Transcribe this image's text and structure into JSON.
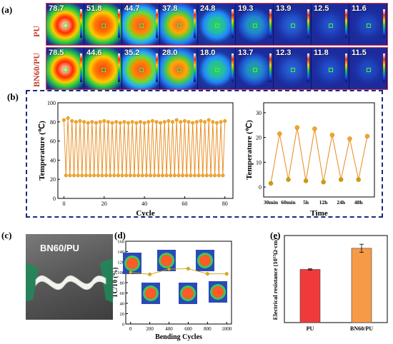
{
  "panels": {
    "a": "(a)",
    "b": "(b)",
    "c": "(c)",
    "d": "(d)",
    "e": "(e)"
  },
  "panel_a": {
    "rows": [
      {
        "label": "PU",
        "temps": [
          "78.7",
          "51.8",
          "44.7",
          "37.8",
          "24.8",
          "19.3",
          "13.9",
          "12.5",
          "11.6"
        ]
      },
      {
        "label": "BN60/PU",
        "temps": [
          "78.5",
          "44.6",
          "35.2",
          "28.0",
          "18.0",
          "13.7",
          "12.3",
          "11.8",
          "11.5"
        ]
      }
    ]
  },
  "panel_c": {
    "label": "BN60/PU"
  },
  "chart_data": [
    {
      "type": "line",
      "panel": "b-left",
      "xlabel": "Cycle",
      "ylabel": "Temperature (℃)",
      "xlim": [
        -3,
        84
      ],
      "ylim": [
        0,
        100
      ],
      "xticks": [
        0,
        20,
        40,
        60,
        80
      ],
      "yticks": [
        0,
        20,
        40,
        60,
        80,
        100
      ],
      "x": [
        0,
        1,
        2,
        3,
        4,
        5,
        6,
        7,
        8,
        9,
        10,
        11,
        12,
        13,
        14,
        15,
        16,
        17,
        18,
        19,
        20,
        21,
        22,
        23,
        24,
        25,
        26,
        27,
        28,
        29,
        30,
        31,
        32,
        33,
        34,
        35,
        36,
        37,
        38,
        39,
        40,
        41,
        42,
        43,
        44,
        45,
        46,
        47,
        48,
        49,
        50,
        51,
        52,
        53,
        54,
        55,
        56,
        57,
        58,
        59,
        60,
        61,
        62,
        63,
        64,
        65,
        66,
        67,
        68,
        69,
        70,
        71,
        72,
        73,
        74,
        75,
        76,
        77,
        78,
        79,
        80
      ],
      "y": [
        82,
        24,
        84,
        24,
        81,
        24,
        80,
        24,
        81,
        24,
        80,
        24,
        79,
        24,
        80,
        24,
        79,
        24,
        80,
        24,
        81,
        24,
        80,
        24,
        79,
        24,
        80,
        24,
        79,
        24,
        80,
        24,
        79,
        24,
        80,
        24,
        79,
        24,
        80,
        24,
        79,
        24,
        80,
        24,
        81,
        24,
        80,
        24,
        79,
        24,
        80,
        24,
        81,
        24,
        80,
        24,
        82,
        24,
        80,
        24,
        81,
        24,
        80,
        24,
        79,
        24,
        80,
        24,
        81,
        24,
        80,
        24,
        82,
        24,
        80,
        24,
        79,
        24,
        80,
        24,
        81
      ]
    },
    {
      "type": "line",
      "panel": "b-right",
      "xlabel": "Time",
      "ylabel": "Temperature (℃)",
      "categories": [
        "30min",
        "",
        "60min",
        "",
        "5h",
        "",
        "12h",
        "",
        "24h",
        "",
        "48h",
        ""
      ],
      "xtick_labels": [
        "30min",
        "60min",
        "5h",
        "12h",
        "24h",
        "48h"
      ],
      "values": [
        1.5,
        21.5,
        3.0,
        24.0,
        2.5,
        23.5,
        2.0,
        21.0,
        3.0,
        19.5,
        3.0,
        20.5
      ],
      "ylim": [
        -4,
        34
      ],
      "yticks": [
        0,
        10,
        20,
        30
      ]
    },
    {
      "type": "line",
      "panel": "d",
      "xlabel": "Bending Cycles",
      "ylabel": "TC/T0 (%)",
      "x": [
        0,
        200,
        400,
        600,
        800,
        1000
      ],
      "y": [
        100,
        96,
        106,
        107,
        97,
        97
      ],
      "xlim": [
        -50,
        1050
      ],
      "ylim": [
        0,
        160
      ],
      "xticks": [
        0,
        200,
        400,
        600,
        800,
        1000
      ],
      "yticks": [
        0,
        20,
        40,
        60,
        80,
        100,
        120,
        140,
        160
      ]
    },
    {
      "type": "bar",
      "panel": "e",
      "ylabel": "Electrical resistance (10¹²Ω·cm)",
      "categories": [
        "PU",
        "BN60/PU"
      ],
      "values": [
        17.1,
        23.9
      ],
      "errors": [
        0.2,
        1.3
      ],
      "ylim": [
        0,
        28
      ],
      "colors": [
        "#f03a3a",
        "#f79a48"
      ]
    }
  ],
  "colors": {
    "accent_orange": "#f5a623",
    "line_orange": "#e8891a",
    "dashed_border": "#1a2a7a"
  }
}
